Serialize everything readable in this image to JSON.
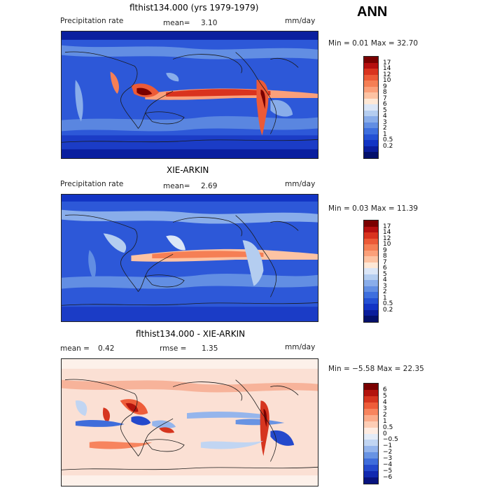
{
  "season": "ANN",
  "panels": [
    {
      "title": "flthist134.000 (yrs 1979-1979)",
      "left_label": "Precipitation rate",
      "stat_label": "mean=",
      "stat_value": "3.10",
      "units": "mm/day",
      "min_max": "Min =    0.01  Max =   32.70",
      "colorbar": {
        "colors": [
          "#7a0000",
          "#b50f0f",
          "#d9331e",
          "#ec5a37",
          "#f57f55",
          "#fba07a",
          "#fdc3a3",
          "#fee8d6",
          "#dbe6f7",
          "#b4cdf0",
          "#89adea",
          "#628ee3",
          "#3e6fde",
          "#2451d4",
          "#1234c4",
          "#0a1d9c",
          "#03106b"
        ],
        "labels": [
          "17",
          "14",
          "12",
          "10",
          "9",
          "8",
          "7",
          "6",
          "5",
          "4",
          "3",
          "2",
          "1",
          "0.5",
          "0.2"
        ]
      }
    },
    {
      "title": "XIE-ARKIN",
      "left_label": "Precipitation rate",
      "stat_label": "mean=",
      "stat_value": "2.69",
      "units": "mm/day",
      "min_max": "Min =    0.03  Max =   11.39",
      "colorbar": {
        "colors": [
          "#7a0000",
          "#b50f0f",
          "#d9331e",
          "#ec5a37",
          "#f57f55",
          "#fba07a",
          "#fdc3a3",
          "#fee8d6",
          "#dbe6f7",
          "#b4cdf0",
          "#89adea",
          "#628ee3",
          "#3e6fde",
          "#2451d4",
          "#1234c4",
          "#0a1d9c",
          "#03106b"
        ],
        "labels": [
          "17",
          "14",
          "12",
          "10",
          "9",
          "8",
          "7",
          "6",
          "5",
          "4",
          "3",
          "2",
          "1",
          "0.5",
          "0.2"
        ]
      }
    },
    {
      "title": "flthist134.000 - XIE-ARKIN",
      "left_label": "mean =",
      "left_value": "0.42",
      "stat_label": "rmse =",
      "stat_value": "1.35",
      "units": "mm/day",
      "min_max": "Min =  −5.58  Max =   22.35",
      "colorbar": {
        "colors": [
          "#7a0000",
          "#b3130d",
          "#d6351f",
          "#ee5d3a",
          "#f7845e",
          "#fbab8a",
          "#fdcdb5",
          "#feece2",
          "#e4ecf8",
          "#c1d5f2",
          "#95b5ec",
          "#6893e3",
          "#3f6ddb",
          "#2449cc",
          "#1129b0",
          "#08137e"
        ],
        "labels": [
          "6",
          "5",
          "4",
          "3",
          "2",
          "1",
          "0.5",
          "0",
          "−0.5",
          "−1",
          "−2",
          "−3",
          "−4",
          "−5",
          "−6"
        ]
      }
    }
  ]
}
